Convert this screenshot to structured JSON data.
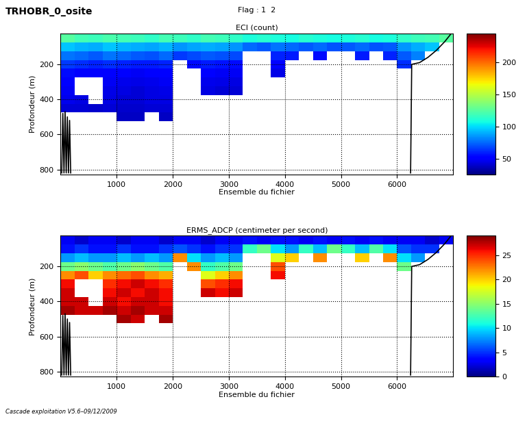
{
  "header": {
    "name": "TRHOBR_0_osite",
    "flag": "Flag : 1  2"
  },
  "footer": "Cascade exploitation V5.6–09/12/2009",
  "chart_data": [
    {
      "type": "heatmap",
      "title": "ECI (count)",
      "xlabel": "Ensemble du fichier",
      "ylabel": "Profondeur (m)",
      "color": "jet",
      "grid": true,
      "xlim": [
        0,
        7000
      ],
      "xticks": [
        1000,
        2000,
        3000,
        4000,
        5000,
        6000
      ],
      "ylim": [
        830,
        25
      ],
      "yticks": [
        200,
        400,
        600,
        800
      ],
      "x_edges": [
        0,
        250,
        500,
        750,
        1000,
        1250,
        1500,
        1750,
        2000,
        2250,
        2500,
        2750,
        3000,
        3250,
        3500,
        3750,
        4000,
        4250,
        4500,
        4750,
        5000,
        5250,
        5500,
        5750,
        6000,
        6250,
        6500,
        6750,
        7000
      ],
      "y_edges": [
        25,
        75,
        125,
        175,
        225,
        275,
        325,
        375,
        425,
        475,
        525,
        575,
        625,
        675,
        725,
        775,
        825
      ],
      "colorbar_lim": [
        25,
        245
      ],
      "colorbar_ticks": [
        50,
        100,
        150,
        200
      ],
      "cells": [
        [
          125,
          120,
          118,
          122,
          120,
          118,
          115,
          120,
          118,
          115,
          120,
          118,
          115,
          110,
          112,
          110,
          108,
          112,
          110,
          108,
          110,
          112,
          108,
          110,
          115,
          118,
          120,
          125
        ],
        [
          95,
          92,
          90,
          95,
          92,
          90,
          88,
          92,
          85,
          88,
          90,
          88,
          85,
          75,
          72,
          78,
          75,
          72,
          75,
          70,
          72,
          75,
          70,
          72,
          85,
          90,
          95,
          null
        ],
        [
          78,
          75,
          72,
          78,
          75,
          72,
          70,
          75,
          65,
          68,
          72,
          70,
          68,
          null,
          null,
          60,
          58,
          null,
          55,
          null,
          null,
          58,
          null,
          60,
          72,
          80,
          null,
          null
        ],
        [
          65,
          62,
          60,
          62,
          60,
          58,
          58,
          60,
          null,
          55,
          58,
          56,
          55,
          null,
          null,
          50,
          null,
          null,
          null,
          null,
          null,
          null,
          null,
          null,
          62,
          null,
          null,
          null
        ],
        [
          55,
          52,
          50,
          52,
          50,
          48,
          50,
          52,
          null,
          null,
          50,
          48,
          48,
          null,
          null,
          45,
          null,
          null,
          null,
          null,
          null,
          null,
          null,
          null,
          null,
          null,
          null,
          null
        ],
        [
          50,
          null,
          null,
          48,
          46,
          45,
          46,
          48,
          null,
          null,
          46,
          45,
          44,
          null,
          null,
          null,
          null,
          null,
          null,
          null,
          null,
          null,
          null,
          null,
          null,
          null,
          null,
          null
        ],
        [
          48,
          null,
          null,
          45,
          44,
          42,
          44,
          45,
          null,
          null,
          44,
          42,
          42,
          null,
          null,
          null,
          null,
          null,
          null,
          null,
          null,
          null,
          null,
          null,
          null,
          null,
          null,
          null
        ],
        [
          46,
          44,
          null,
          44,
          42,
          42,
          44,
          44,
          null,
          null,
          null,
          null,
          null,
          null,
          null,
          null,
          null,
          null,
          null,
          null,
          null,
          null,
          null,
          null,
          null,
          null,
          null,
          null
        ],
        [
          42,
          42,
          40,
          42,
          40,
          40,
          42,
          42,
          null,
          null,
          null,
          null,
          null,
          null,
          null,
          null,
          null,
          null,
          null,
          null,
          null,
          null,
          null,
          null,
          null,
          null,
          null,
          null
        ],
        [
          null,
          null,
          null,
          null,
          38,
          38,
          null,
          38,
          null,
          null,
          null,
          null,
          null,
          null,
          null,
          null,
          null,
          null,
          null,
          null,
          null,
          null,
          null,
          null,
          null,
          null,
          null,
          null
        ],
        [
          null,
          null,
          null,
          null,
          null,
          null,
          null,
          null,
          null,
          null,
          null,
          null,
          null,
          null,
          null,
          null,
          null,
          null,
          null,
          null,
          null,
          null,
          null,
          null,
          null,
          null,
          null,
          null
        ],
        [
          null,
          null,
          null,
          null,
          null,
          null,
          null,
          null,
          null,
          null,
          null,
          null,
          null,
          null,
          null,
          null,
          null,
          null,
          null,
          null,
          null,
          null,
          null,
          null,
          null,
          null,
          null,
          null
        ],
        [
          null,
          null,
          null,
          null,
          null,
          null,
          null,
          null,
          null,
          null,
          null,
          null,
          null,
          null,
          null,
          null,
          null,
          null,
          null,
          null,
          null,
          null,
          null,
          null,
          null,
          null,
          null,
          null
        ],
        [
          null,
          null,
          null,
          null,
          null,
          null,
          null,
          null,
          null,
          null,
          null,
          null,
          null,
          null,
          null,
          null,
          null,
          null,
          null,
          null,
          null,
          null,
          null,
          null,
          null,
          null,
          null,
          null
        ],
        [
          null,
          null,
          null,
          null,
          null,
          null,
          null,
          null,
          null,
          null,
          null,
          null,
          null,
          null,
          null,
          null,
          null,
          null,
          null,
          null,
          null,
          null,
          null,
          null,
          null,
          null,
          null,
          null
        ],
        [
          null,
          null,
          null,
          null,
          null,
          null,
          null,
          null,
          null,
          null,
          null,
          null,
          null,
          null,
          null,
          null,
          null,
          null,
          null,
          null,
          null,
          null,
          null,
          null,
          null,
          null,
          null,
          null
        ]
      ],
      "bottom": {
        "color": "black",
        "x": [
          20,
          40,
          60,
          80,
          100,
          120,
          140,
          160,
          180,
          200,
          6240,
          6260,
          6400,
          6550,
          6700,
          6850,
          6950
        ],
        "values": [
          820,
          480,
          820,
          470,
          820,
          500,
          820,
          520,
          820,
          null,
          820,
          200,
          190,
          160,
          120,
          70,
          30
        ]
      }
    },
    {
      "type": "heatmap",
      "title": "ERMS_ADCP (centimeter per second)",
      "xlabel": "Ensemble du fichier",
      "ylabel": "Profondeur (m)",
      "color": "jet",
      "grid": true,
      "xlim": [
        0,
        7000
      ],
      "xticks": [
        1000,
        2000,
        3000,
        4000,
        5000,
        6000
      ],
      "ylim": [
        830,
        25
      ],
      "yticks": [
        200,
        400,
        600,
        800
      ],
      "x_edges": [
        0,
        250,
        500,
        750,
        1000,
        1250,
        1500,
        1750,
        2000,
        2250,
        2500,
        2750,
        3000,
        3250,
        3500,
        3750,
        4000,
        4250,
        4500,
        4750,
        5000,
        5250,
        5500,
        5750,
        6000,
        6250,
        6500,
        6750,
        7000
      ],
      "y_edges": [
        25,
        75,
        125,
        175,
        225,
        275,
        325,
        375,
        425,
        475,
        525,
        575,
        625,
        675,
        725,
        775,
        825
      ],
      "colorbar_lim": [
        0,
        29
      ],
      "colorbar_ticks": [
        0,
        5,
        10,
        15,
        20,
        25
      ],
      "cells": [
        [
          3,
          2,
          3,
          3,
          2,
          3,
          3,
          2,
          3,
          3,
          2,
          3,
          3,
          4,
          3,
          4,
          4,
          3,
          4,
          3,
          4,
          3,
          4,
          3,
          3,
          3,
          2,
          3
        ],
        [
          4,
          5,
          4,
          4,
          5,
          4,
          4,
          5,
          6,
          5,
          4,
          5,
          5,
          12,
          14,
          10,
          8,
          12,
          9,
          14,
          12,
          9,
          13,
          10,
          6,
          5,
          5,
          null
        ],
        [
          8,
          9,
          8,
          8,
          9,
          8,
          9,
          8,
          22,
          10,
          8,
          9,
          8,
          null,
          null,
          18,
          20,
          null,
          22,
          null,
          null,
          20,
          null,
          22,
          10,
          8,
          null,
          null
        ],
        [
          14,
          15,
          14,
          13,
          14,
          15,
          14,
          13,
          null,
          22,
          12,
          13,
          14,
          null,
          null,
          24,
          null,
          null,
          null,
          null,
          null,
          null,
          null,
          null,
          14,
          null,
          null,
          null
        ],
        [
          22,
          24,
          20,
          22,
          23,
          24,
          22,
          21,
          null,
          null,
          18,
          20,
          22,
          null,
          null,
          26,
          null,
          null,
          null,
          null,
          null,
          null,
          null,
          null,
          null,
          null,
          null,
          null
        ],
        [
          26,
          null,
          null,
          25,
          26,
          27,
          26,
          25,
          null,
          null,
          24,
          25,
          26,
          null,
          null,
          null,
          null,
          null,
          null,
          null,
          null,
          null,
          null,
          null,
          null,
          null,
          null,
          null
        ],
        [
          27,
          null,
          null,
          26,
          27,
          26,
          27,
          26,
          null,
          null,
          27,
          26,
          27,
          null,
          null,
          null,
          null,
          null,
          null,
          null,
          null,
          null,
          null,
          null,
          null,
          null,
          null,
          null
        ],
        [
          27,
          27,
          null,
          27,
          26,
          27,
          27,
          26,
          null,
          null,
          null,
          null,
          null,
          null,
          null,
          null,
          null,
          null,
          null,
          null,
          null,
          null,
          null,
          null,
          null,
          null,
          null,
          null
        ],
        [
          28,
          27,
          27,
          28,
          27,
          28,
          27,
          27,
          null,
          null,
          null,
          null,
          null,
          null,
          null,
          null,
          null,
          null,
          null,
          null,
          null,
          null,
          null,
          null,
          null,
          null,
          null,
          null
        ],
        [
          null,
          null,
          null,
          null,
          28,
          27,
          null,
          28,
          null,
          null,
          null,
          null,
          null,
          null,
          null,
          null,
          null,
          null,
          null,
          null,
          null,
          null,
          null,
          null,
          null,
          null,
          null,
          null
        ],
        [
          null,
          null,
          null,
          null,
          null,
          null,
          null,
          null,
          null,
          null,
          null,
          null,
          null,
          null,
          null,
          null,
          null,
          null,
          null,
          null,
          null,
          null,
          null,
          null,
          null,
          null,
          null,
          null
        ],
        [
          null,
          null,
          null,
          null,
          null,
          null,
          null,
          null,
          null,
          null,
          null,
          null,
          null,
          null,
          null,
          null,
          null,
          null,
          null,
          null,
          null,
          null,
          null,
          null,
          null,
          null,
          null,
          null
        ],
        [
          null,
          null,
          null,
          null,
          null,
          null,
          null,
          null,
          null,
          null,
          null,
          null,
          null,
          null,
          null,
          null,
          null,
          null,
          null,
          null,
          null,
          null,
          null,
          null,
          null,
          null,
          null,
          null
        ],
        [
          null,
          null,
          null,
          null,
          null,
          null,
          null,
          null,
          null,
          null,
          null,
          null,
          null,
          null,
          null,
          null,
          null,
          null,
          null,
          null,
          null,
          null,
          null,
          null,
          null,
          null,
          null,
          null
        ],
        [
          null,
          null,
          null,
          null,
          null,
          null,
          null,
          null,
          null,
          null,
          null,
          null,
          null,
          null,
          null,
          null,
          null,
          null,
          null,
          null,
          null,
          null,
          null,
          null,
          null,
          null,
          null,
          null
        ],
        [
          null,
          null,
          null,
          null,
          null,
          null,
          null,
          null,
          null,
          null,
          null,
          null,
          null,
          null,
          null,
          null,
          null,
          null,
          null,
          null,
          null,
          null,
          null,
          null,
          null,
          null,
          null,
          null
        ]
      ],
      "bottom": {
        "color": "black",
        "x": [
          20,
          40,
          60,
          80,
          100,
          120,
          140,
          160,
          180,
          200,
          6240,
          6260,
          6400,
          6550,
          6700,
          6850,
          6950
        ],
        "values": [
          820,
          480,
          820,
          470,
          820,
          500,
          820,
          520,
          820,
          null,
          820,
          200,
          190,
          160,
          120,
          70,
          30
        ]
      }
    }
  ]
}
